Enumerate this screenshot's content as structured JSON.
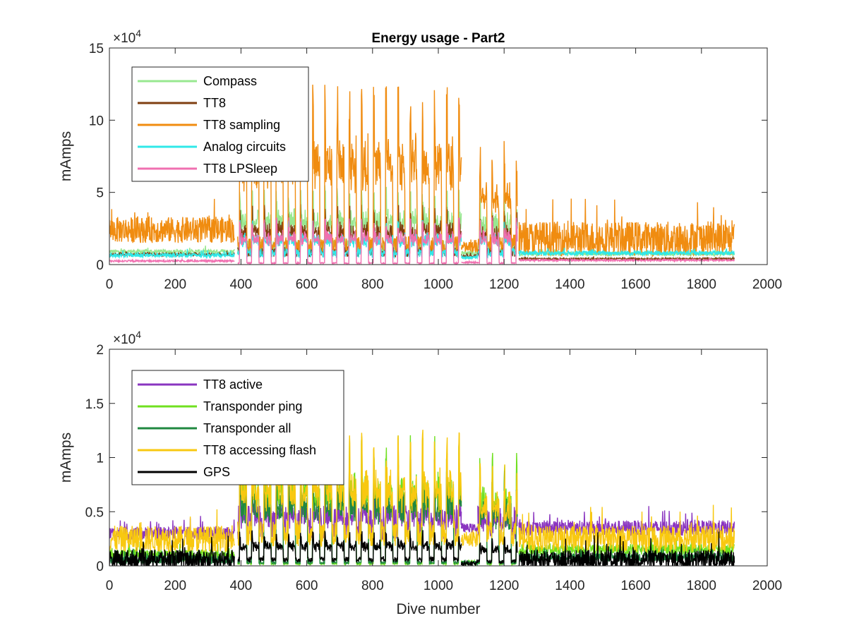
{
  "chart_data": [
    {
      "type": "line",
      "title": "Energy usage - Part2",
      "xlabel": "",
      "ylabel": "mAmps",
      "xlim": [
        0,
        2000
      ],
      "ylim": [
        0,
        150000
      ],
      "xticks": [
        0,
        200,
        400,
        600,
        800,
        1000,
        1200,
        1400,
        1600,
        1800,
        2000
      ],
      "xtick_labels": [
        "0",
        "200",
        "400",
        "600",
        "800",
        "1000",
        "1200",
        "1400",
        "1600",
        "1800",
        "2000"
      ],
      "yticks": [
        0,
        50000,
        100000,
        150000
      ],
      "ytick_labels": [
        "0",
        "5",
        "10",
        "15"
      ],
      "exponent": {
        "base": "×10",
        "power": "4"
      },
      "legend_position": "top-left",
      "grid": false,
      "series": [
        {
          "name": "Compass",
          "color": "#98e890",
          "values_desc": "baseline",
          "segments": [
            {
              "x": [
                0,
                380
              ],
              "base": 9000,
              "var": 1500
            },
            {
              "x": [
                390,
                1070
              ],
              "base": 12000,
              "peak": 50000,
              "period": 37
            },
            {
              "x": [
                1070,
                1120
              ],
              "base": 8000,
              "var": 1500
            },
            {
              "x": [
                1120,
                1240
              ],
              "base": 12000,
              "peak": 45000,
              "period": 37
            },
            {
              "x": [
                1245,
                1900
              ],
              "base": 7500,
              "var": 1500
            }
          ]
        },
        {
          "name": "TT8",
          "color": "#7f3f10",
          "segments": [
            {
              "x": [
                0,
                380
              ],
              "base": 7000,
              "var": 1000
            },
            {
              "x": [
                390,
                1070
              ],
              "base": 9000,
              "peak": 38000,
              "period": 37
            },
            {
              "x": [
                1070,
                1120
              ],
              "base": 6000,
              "var": 800
            },
            {
              "x": [
                1120,
                1240
              ],
              "base": 9000,
              "peak": 34000,
              "period": 37
            },
            {
              "x": [
                1245,
                1900
              ],
              "base": 4000,
              "var": 600
            }
          ]
        },
        {
          "name": "TT8 sampling",
          "color": "#f08c10",
          "segments": [
            {
              "x": [
                0,
                380
              ],
              "base": 24000,
              "var": 9000
            },
            {
              "x": [
                390,
                1070
              ],
              "base": 14000,
              "peak": 115000,
              "period": 37
            },
            {
              "x": [
                1070,
                1120
              ],
              "base": 12000,
              "var": 4000
            },
            {
              "x": [
                1120,
                1240
              ],
              "base": 15000,
              "peak": 78000,
              "period": 37
            },
            {
              "x": [
                1245,
                1900
              ],
              "base": 18000,
              "var": 12000
            }
          ]
        },
        {
          "name": "Analog circuits",
          "color": "#30e8e8",
          "segments": [
            {
              "x": [
                0,
                380
              ],
              "base": 6500,
              "var": 1500
            },
            {
              "x": [
                390,
                1070
              ],
              "base": 8000,
              "peak": 28000,
              "period": 37
            },
            {
              "x": [
                1070,
                1120
              ],
              "base": 5000,
              "var": 1000
            },
            {
              "x": [
                1120,
                1240
              ],
              "base": 8000,
              "peak": 28000,
              "period": 37
            },
            {
              "x": [
                1245,
                1900
              ],
              "base": 8000,
              "var": 1500
            }
          ]
        },
        {
          "name": "TT8 LPSleep",
          "color": "#f070b0",
          "segments": [
            {
              "x": [
                0,
                380
              ],
              "base": 2500,
              "var": 600
            },
            {
              "x": [
                390,
                1070
              ],
              "base": 1000,
              "peak": 30000,
              "period": 37
            },
            {
              "x": [
                1070,
                1120
              ],
              "base": 1500,
              "var": 500
            },
            {
              "x": [
                1120,
                1240
              ],
              "base": 1000,
              "peak": 30000,
              "period": 37
            },
            {
              "x": [
                1245,
                1900
              ],
              "base": 3000,
              "var": 600
            }
          ]
        }
      ]
    },
    {
      "type": "line",
      "title": "",
      "xlabel": "Dive number",
      "ylabel": "mAmps",
      "xlim": [
        0,
        2000
      ],
      "ylim": [
        0,
        20000
      ],
      "xticks": [
        0,
        200,
        400,
        600,
        800,
        1000,
        1200,
        1400,
        1600,
        1800,
        2000
      ],
      "xtick_labels": [
        "0",
        "200",
        "400",
        "600",
        "800",
        "1000",
        "1200",
        "1400",
        "1600",
        "1800",
        "2000"
      ],
      "yticks": [
        0,
        5000,
        10000,
        15000,
        20000
      ],
      "ytick_labels": [
        "0",
        "0.5",
        "1",
        "1.5",
        "2"
      ],
      "exponent": {
        "base": "×10",
        "power": "4"
      },
      "legend_position": "top-left",
      "grid": false,
      "series": [
        {
          "name": "TT8 active",
          "color": "#8a35c0",
          "segments": [
            {
              "x": [
                0,
                380
              ],
              "base": 3000,
              "var": 600
            },
            {
              "x": [
                390,
                1070
              ],
              "base": 4000,
              "peak": 8000,
              "period": 37
            },
            {
              "x": [
                1070,
                1120
              ],
              "base": 3500,
              "var": 400
            },
            {
              "x": [
                1120,
                1240
              ],
              "base": 4000,
              "peak": 7000,
              "period": 37
            },
            {
              "x": [
                1245,
                1900
              ],
              "base": 3500,
              "var": 700
            }
          ]
        },
        {
          "name": "Transponder ping",
          "color": "#70e020",
          "segments": [
            {
              "x": [
                0,
                380
              ],
              "base": 1000,
              "var": 500
            },
            {
              "x": [
                390,
                1070
              ],
              "base": 200,
              "peak": 11000,
              "period": 37
            },
            {
              "x": [
                1070,
                1120
              ],
              "base": 300,
              "var": 200
            },
            {
              "x": [
                1120,
                1240
              ],
              "base": 200,
              "peak": 9500,
              "period": 37
            },
            {
              "x": [
                1245,
                1900
              ],
              "base": 1500,
              "var": 500
            }
          ]
        },
        {
          "name": "Transponder all",
          "color": "#208840",
          "segments": [
            {
              "x": [
                0,
                380
              ],
              "base": 600,
              "var": 400
            },
            {
              "x": [
                390,
                1070
              ],
              "base": 300,
              "peak": 9000,
              "period": 37
            },
            {
              "x": [
                1070,
                1120
              ],
              "base": 300,
              "var": 200
            },
            {
              "x": [
                1120,
                1240
              ],
              "base": 300,
              "peak": 8000,
              "period": 37
            },
            {
              "x": [
                1245,
                1900
              ],
              "base": 800,
              "var": 400
            }
          ]
        },
        {
          "name": "TT8 accessing flash",
          "color": "#f8c810",
          "segments": [
            {
              "x": [
                0,
                380
              ],
              "base": 2500,
              "var": 1200
            },
            {
              "x": [
                390,
                1070
              ],
              "base": 3000,
              "peak": 11500,
              "period": 37
            },
            {
              "x": [
                1070,
                1120
              ],
              "base": 2500,
              "var": 800
            },
            {
              "x": [
                1120,
                1240
              ],
              "base": 3000,
              "peak": 9000,
              "period": 37
            },
            {
              "x": [
                1245,
                1900
              ],
              "base": 2500,
              "var": 1200
            }
          ]
        },
        {
          "name": "GPS",
          "color": "#000000",
          "segments": [
            {
              "x": [
                0,
                380
              ],
              "base": 600,
              "var": 900
            },
            {
              "x": [
                390,
                1070
              ],
              "base": 600,
              "peak": 3000,
              "period": 37
            },
            {
              "x": [
                1070,
                1120
              ],
              "base": 200,
              "var": 200
            },
            {
              "x": [
                1120,
                1240
              ],
              "base": 400,
              "peak": 2500,
              "period": 37
            },
            {
              "x": [
                1245,
                1900
              ],
              "base": 600,
              "var": 900
            }
          ]
        }
      ]
    }
  ]
}
